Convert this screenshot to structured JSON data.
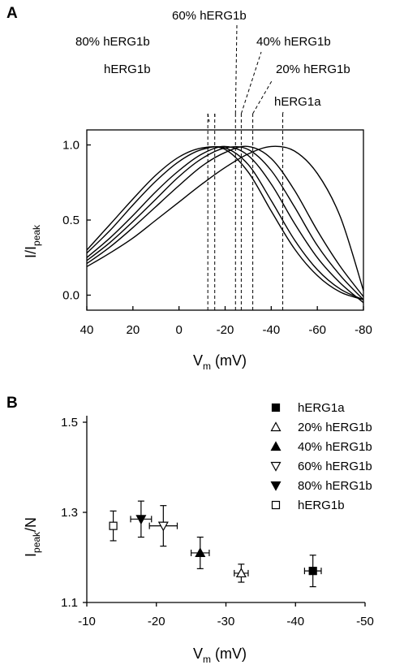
{
  "chart_data": [
    {
      "panel_label": "A",
      "type": "line",
      "xlabel_main": "V",
      "xlabel_sub": "m",
      "xlabel_unit": " (mV)",
      "ylabel_main": "I/I",
      "ylabel_sub": "peak",
      "xlim": [
        40,
        -80
      ],
      "ylim": [
        -0.1,
        1.1
      ],
      "x_ticks": [
        40,
        20,
        0,
        -20,
        -40,
        -60,
        -80
      ],
      "x_tick_labels": [
        "40",
        "20",
        "0",
        "-20",
        "-40",
        "-60",
        "-80"
      ],
      "y_ticks": [
        0.0,
        0.5,
        1.0
      ],
      "y_tick_labels": [
        "0.0",
        "0.5",
        "1.0"
      ],
      "grid": false,
      "series": [
        {
          "name": "hERG1b",
          "peak_v": -12.5
        },
        {
          "name": "80% hERG1b",
          "peak_v": -15.5
        },
        {
          "name": "60% hERG1b",
          "peak_v": -24.5
        },
        {
          "name": "40% hERG1b",
          "peak_v": -27.0
        },
        {
          "name": "20% hERG1b",
          "peak_v": -32.0
        },
        {
          "name": "hERG1a",
          "peak_v": -45.0
        }
      ],
      "curves": [
        {
          "x": [
            40,
            30,
            20,
            10,
            0,
            -10,
            -20,
            -30,
            -40,
            -50,
            -60,
            -70,
            -80
          ],
          "y": [
            0.3,
            0.47,
            0.64,
            0.8,
            0.92,
            0.98,
            0.97,
            0.82,
            0.56,
            0.31,
            0.13,
            0.02,
            -0.03
          ]
        },
        {
          "x": [
            40,
            30,
            20,
            10,
            0,
            -10,
            -20,
            -30,
            -40,
            -50,
            -60,
            -70,
            -80
          ],
          "y": [
            0.28,
            0.43,
            0.6,
            0.76,
            0.89,
            0.97,
            0.98,
            0.87,
            0.63,
            0.37,
            0.17,
            0.04,
            -0.03
          ]
        },
        {
          "x": [
            40,
            30,
            20,
            10,
            0,
            -10,
            -20,
            -30,
            -40,
            -50,
            -60,
            -70,
            -80
          ],
          "y": [
            0.25,
            0.38,
            0.53,
            0.69,
            0.83,
            0.94,
            0.99,
            0.93,
            0.74,
            0.48,
            0.25,
            0.08,
            -0.05
          ]
        },
        {
          "x": [
            40,
            30,
            20,
            10,
            0,
            -10,
            -20,
            -30,
            -40,
            -50,
            -60,
            -70,
            -80
          ],
          "y": [
            0.23,
            0.35,
            0.49,
            0.64,
            0.79,
            0.91,
            0.98,
            0.97,
            0.83,
            0.59,
            0.33,
            0.13,
            -0.03
          ]
        },
        {
          "x": [
            40,
            30,
            20,
            10,
            0,
            -10,
            -20,
            -30,
            -40,
            -50,
            -60,
            -70,
            -80
          ],
          "y": [
            0.21,
            0.32,
            0.45,
            0.59,
            0.73,
            0.86,
            0.95,
            0.99,
            0.91,
            0.7,
            0.43,
            0.19,
            -0.01
          ]
        },
        {
          "x": [
            40,
            30,
            20,
            10,
            0,
            -10,
            -20,
            -30,
            -40,
            -50,
            -60,
            -70,
            -80
          ],
          "y": [
            0.19,
            0.28,
            0.38,
            0.5,
            0.62,
            0.74,
            0.85,
            0.94,
            0.99,
            0.96,
            0.81,
            0.52,
            0.03
          ]
        }
      ]
    },
    {
      "panel_label": "B",
      "type": "scatter",
      "xlabel_main": "V",
      "xlabel_sub": "m",
      "xlabel_unit": " (mV)",
      "ylabel_main": "I",
      "ylabel_sub": "peak",
      "ylabel_tail": "/N",
      "xlim": [
        -10,
        -50
      ],
      "ylim": [
        1.1,
        1.5
      ],
      "x_ticks": [
        -10,
        -20,
        -30,
        -40,
        -50
      ],
      "x_tick_labels": [
        "-10",
        "-20",
        "-30",
        "-40",
        "-50"
      ],
      "y_ticks": [
        1.1,
        1.3,
        1.5
      ],
      "y_tick_labels": [
        "1.1",
        "1.3",
        "1.5"
      ],
      "grid": false,
      "legend_position": "top-right",
      "series": [
        {
          "name": "hERG1a",
          "marker": "square-filled",
          "x": -42.5,
          "y": 1.17,
          "xerr": 1.2,
          "yerr": 0.035
        },
        {
          "name": "20% hERG1b",
          "marker": "triangle-up-open",
          "x": -32.2,
          "y": 1.165,
          "xerr": 1.0,
          "yerr": 0.02
        },
        {
          "name": "40% hERG1b",
          "marker": "triangle-up-filled",
          "x": -26.3,
          "y": 1.21,
          "xerr": 1.3,
          "yerr": 0.035
        },
        {
          "name": "60% hERG1b",
          "marker": "triangle-down-open",
          "x": -21.0,
          "y": 1.27,
          "xerr": 2.0,
          "yerr": 0.045
        },
        {
          "name": "80% hERG1b",
          "marker": "triangle-down-filled",
          "x": -17.8,
          "y": 1.285,
          "xerr": 1.5,
          "yerr": 0.04
        },
        {
          "name": "hERG1b",
          "marker": "square-open",
          "x": -13.8,
          "y": 1.27,
          "xerr": 0.0,
          "yerr": 0.033
        }
      ]
    }
  ]
}
